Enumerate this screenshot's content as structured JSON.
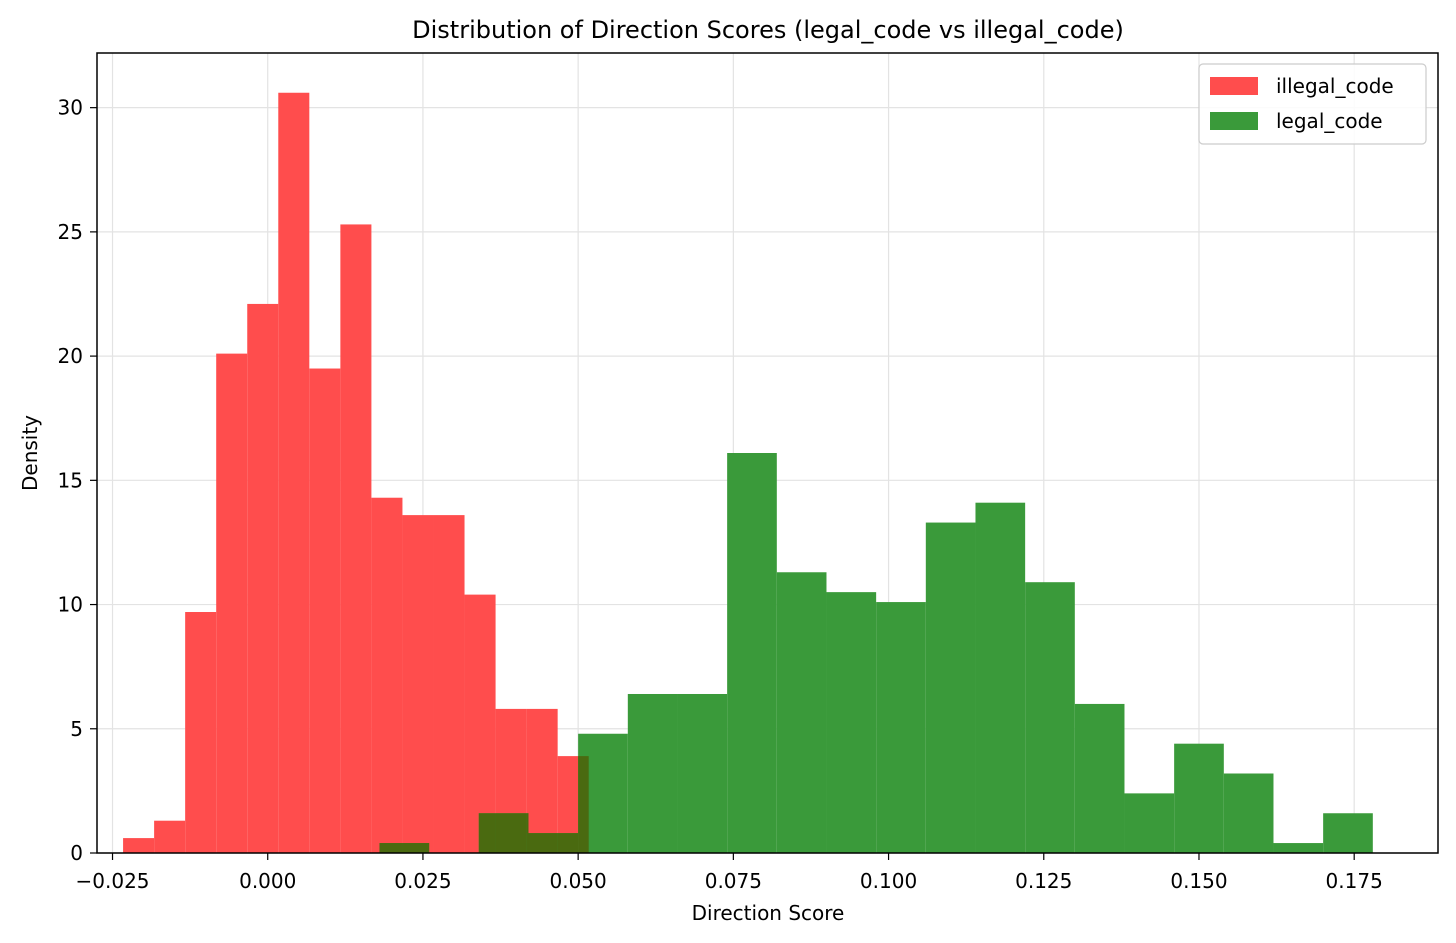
{
  "chart_data": {
    "type": "histogram",
    "title": "Distribution of Direction Scores (legal_code vs illegal_code)",
    "xlabel": "Direction Score",
    "ylabel": "Density",
    "xlim": [
      -0.0275,
      0.1885
    ],
    "ylim": [
      0,
      32.2
    ],
    "xticks": [
      -0.025,
      0.0,
      0.025,
      0.05,
      0.075,
      0.1,
      0.125,
      0.15,
      0.175
    ],
    "xtick_labels": [
      "−0.025",
      "0.000",
      "0.025",
      "0.050",
      "0.075",
      "0.100",
      "0.125",
      "0.150",
      "0.175"
    ],
    "yticks": [
      0,
      5,
      10,
      15,
      20,
      25,
      30
    ],
    "ytick_labels": [
      "0",
      "5",
      "10",
      "15",
      "20",
      "25",
      "30"
    ],
    "grid": true,
    "legend_position": "top-right",
    "overlap_color": "#4a6a10",
    "series": [
      {
        "name": "illegal_code",
        "color": "#ff4d4d",
        "bins": [
          {
            "x0": -0.0233,
            "x1": -0.0183,
            "y": 0.6
          },
          {
            "x0": -0.0183,
            "x1": -0.0133,
            "y": 1.3
          },
          {
            "x0": -0.0133,
            "x1": -0.0083,
            "y": 9.7
          },
          {
            "x0": -0.0083,
            "x1": -0.0033,
            "y": 20.1
          },
          {
            "x0": -0.0033,
            "x1": 0.0017,
            "y": 22.1
          },
          {
            "x0": 0.0017,
            "x1": 0.0067,
            "y": 30.6
          },
          {
            "x0": 0.0067,
            "x1": 0.0117,
            "y": 19.5
          },
          {
            "x0": 0.0117,
            "x1": 0.0167,
            "y": 25.3
          },
          {
            "x0": 0.0167,
            "x1": 0.0217,
            "y": 14.3
          },
          {
            "x0": 0.0217,
            "x1": 0.0267,
            "y": 13.6
          },
          {
            "x0": 0.0267,
            "x1": 0.0317,
            "y": 13.6
          },
          {
            "x0": 0.0317,
            "x1": 0.0367,
            "y": 10.4
          },
          {
            "x0": 0.0367,
            "x1": 0.0417,
            "y": 5.8
          },
          {
            "x0": 0.0417,
            "x1": 0.0467,
            "y": 5.8
          },
          {
            "x0": 0.0467,
            "x1": 0.0517,
            "y": 3.9
          }
        ]
      },
      {
        "name": "legal_code",
        "color": "#3a9a3a",
        "bins": [
          {
            "x0": 0.018,
            "x1": 0.026,
            "y": 0.4
          },
          {
            "x0": 0.026,
            "x1": 0.034,
            "y": 0.0
          },
          {
            "x0": 0.034,
            "x1": 0.042,
            "y": 1.6
          },
          {
            "x0": 0.042,
            "x1": 0.05,
            "y": 0.8
          },
          {
            "x0": 0.05,
            "x1": 0.058,
            "y": 4.8
          },
          {
            "x0": 0.058,
            "x1": 0.066,
            "y": 6.4
          },
          {
            "x0": 0.066,
            "x1": 0.074,
            "y": 6.4
          },
          {
            "x0": 0.074,
            "x1": 0.082,
            "y": 16.1
          },
          {
            "x0": 0.082,
            "x1": 0.09,
            "y": 11.3
          },
          {
            "x0": 0.09,
            "x1": 0.098,
            "y": 10.5
          },
          {
            "x0": 0.098,
            "x1": 0.106,
            "y": 10.1
          },
          {
            "x0": 0.106,
            "x1": 0.114,
            "y": 13.3
          },
          {
            "x0": 0.114,
            "x1": 0.122,
            "y": 14.1
          },
          {
            "x0": 0.122,
            "x1": 0.13,
            "y": 10.9
          },
          {
            "x0": 0.13,
            "x1": 0.138,
            "y": 6.0
          },
          {
            "x0": 0.138,
            "x1": 0.146,
            "y": 2.4
          },
          {
            "x0": 0.146,
            "x1": 0.154,
            "y": 4.4
          },
          {
            "x0": 0.154,
            "x1": 0.162,
            "y": 3.2
          },
          {
            "x0": 0.162,
            "x1": 0.17,
            "y": 0.4
          },
          {
            "x0": 0.17,
            "x1": 0.178,
            "y": 1.6
          }
        ]
      }
    ]
  }
}
